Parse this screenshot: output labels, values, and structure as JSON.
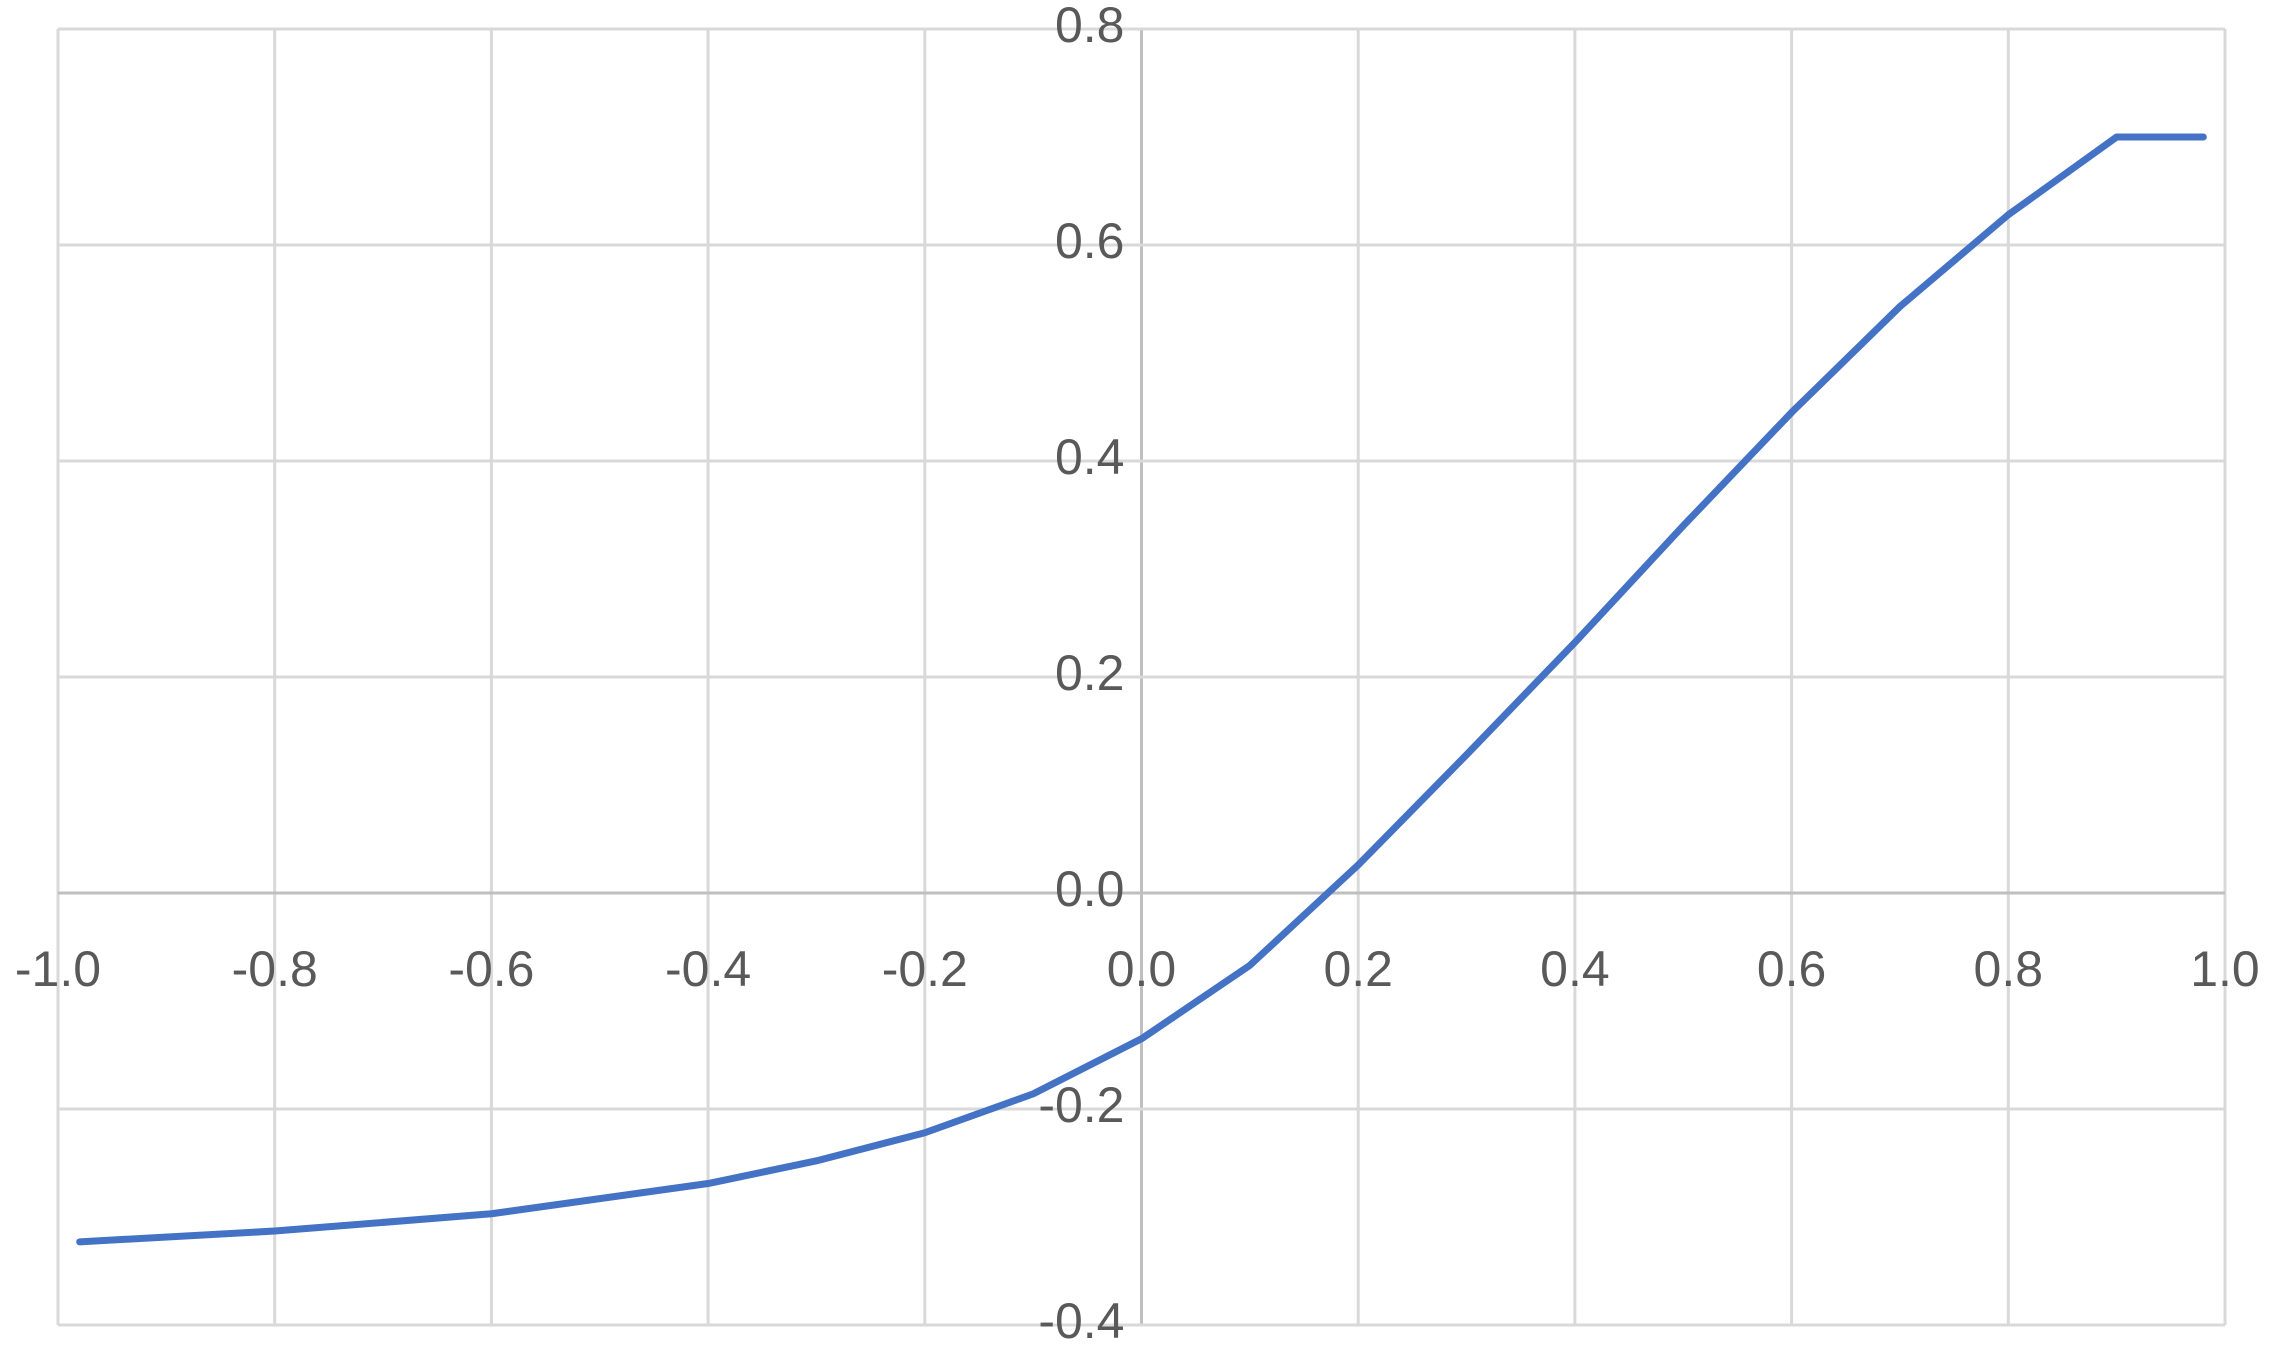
{
  "chart_data": {
    "type": "line",
    "x": [
      -0.98,
      -0.8,
      -0.6,
      -0.4,
      -0.3,
      -0.2,
      -0.1,
      0.0,
      0.1,
      0.2,
      0.3,
      0.4,
      0.5,
      0.6,
      0.7,
      0.8,
      0.9,
      0.98
    ],
    "series": [
      {
        "color": "#4472c4",
        "values": [
          -0.323,
          -0.313,
          -0.297,
          -0.269,
          -0.248,
          -0.222,
          -0.186,
          -0.135,
          -0.067,
          0.026,
          0.128,
          0.232,
          0.34,
          0.445,
          0.543,
          0.628,
          0.7,
          0.7
        ]
      }
    ],
    "xlim": [
      -1,
      1
    ],
    "xticks": [
      {
        "value": -1,
        "label": "-1.0"
      },
      -0.8,
      -0.6,
      -0.4,
      -0.2,
      {
        "value": 0,
        "label": "0.0"
      },
      0.2,
      0.4,
      0.6,
      0.8,
      {
        "value": 1,
        "label": "1.0"
      }
    ],
    "ylim": [
      -0.4,
      0.8
    ],
    "yticks": [
      -0.4,
      -0.2,
      {
        "value": 0,
        "label": "0.0"
      },
      0.2,
      0.4,
      0.6,
      0.8
    ],
    "grid": true
  }
}
